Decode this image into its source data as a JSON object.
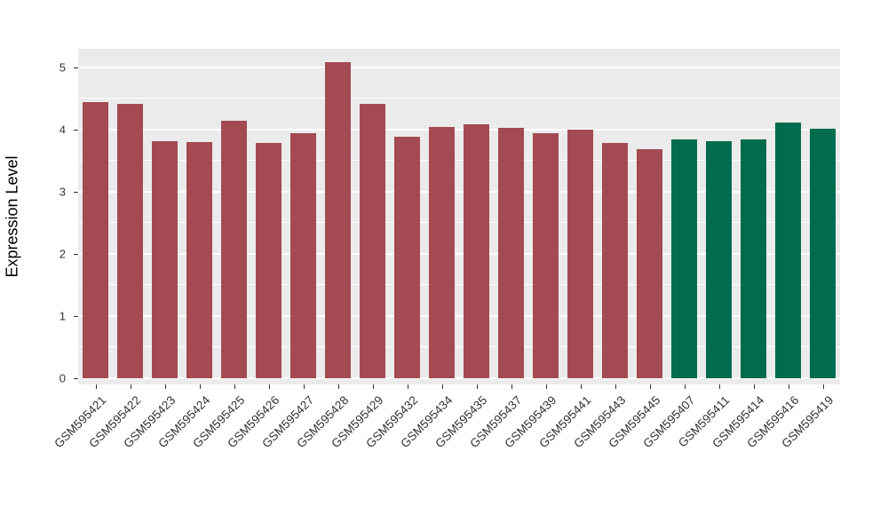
{
  "chart_data": {
    "type": "bar",
    "title": "",
    "xlabel": "",
    "ylabel": "Expression Level",
    "ylim": [
      -0.1,
      5.3
    ],
    "yticks": [
      0,
      1,
      2,
      3,
      4,
      5
    ],
    "yminor": [
      0.5,
      1.5,
      2.5,
      3.5,
      4.5
    ],
    "grid": true,
    "legend_position": "none",
    "panel_background": "#EBEBEB",
    "gridline_color": "#ffffff",
    "categories": [
      "GSM595421",
      "GSM595422",
      "GSM595423",
      "GSM595424",
      "GSM595425",
      "GSM595426",
      "GSM595427",
      "GSM595428",
      "GSM595429",
      "GSM595432",
      "GSM595434",
      "GSM595435",
      "GSM595437",
      "GSM595439",
      "GSM595441",
      "GSM595443",
      "GSM595445",
      "GSM595407",
      "GSM595411",
      "GSM595414",
      "GSM595416",
      "GSM595419"
    ],
    "values": [
      4.45,
      4.42,
      3.82,
      3.8,
      4.15,
      3.78,
      3.95,
      5.08,
      4.42,
      3.88,
      4.05,
      4.08,
      4.03,
      3.95,
      4.0,
      3.78,
      3.68,
      3.85,
      3.82,
      3.85,
      4.12,
      4.02
    ],
    "groups": [
      "red",
      "red",
      "red",
      "red",
      "red",
      "red",
      "red",
      "red",
      "red",
      "red",
      "red",
      "red",
      "red",
      "red",
      "red",
      "red",
      "red",
      "green",
      "green",
      "green",
      "green",
      "green"
    ],
    "group_colors": {
      "red": "#A34A52",
      "green": "#006B4D"
    }
  }
}
